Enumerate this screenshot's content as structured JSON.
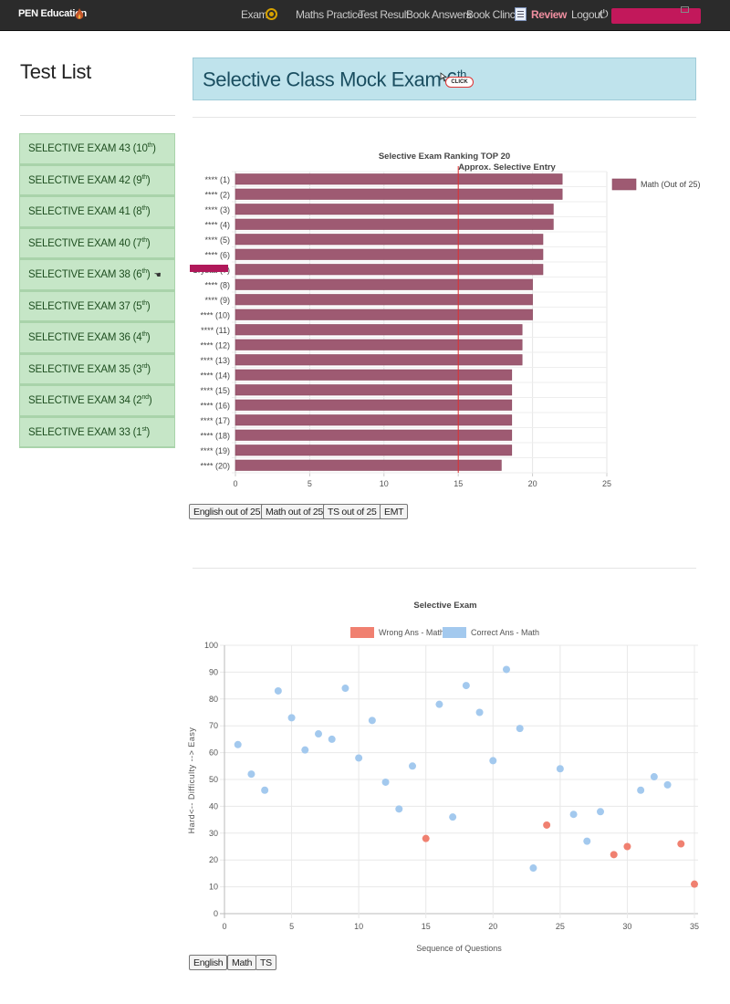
{
  "navbar": {
    "brand": "PEN Education",
    "links": {
      "exam": "Exam",
      "maths_practice": "Maths Practice",
      "test_result": "Test Result",
      "book_answers": "Book Answers",
      "book_clinic": "Book Clinc",
      "review": "Review",
      "logout": "Logout"
    },
    "colors": {
      "bar": "#2b2b2b",
      "review": "#f08fa0"
    }
  },
  "sidebar": {
    "title": "Test List",
    "items": [
      {
        "label": "SELECTIVE EXAM 43 (10",
        "sup": "th",
        "end": ")"
      },
      {
        "label": "SELECTIVE EXAM 42 (9",
        "sup": "th",
        "end": ")"
      },
      {
        "label": "SELECTIVE EXAM 41 (8",
        "sup": "th",
        "end": ")"
      },
      {
        "label": "SELECTIVE EXAM 40 (7",
        "sup": "th",
        "end": ")"
      },
      {
        "label": "SELECTIVE EXAM 38 (6",
        "sup": "th",
        "end": ")",
        "selected": true
      },
      {
        "label": "SELECTIVE EXAM 37 (5",
        "sup": "th",
        "end": ")"
      },
      {
        "label": "SELECTIVE EXAM 36 (4",
        "sup": "th",
        "end": ")"
      },
      {
        "label": "SELECTIVE EXAM 35 (3",
        "sup": "rd",
        "end": ")"
      },
      {
        "label": "SELECTIVE EXAM 34 (2",
        "sup": "nd",
        "end": ")"
      },
      {
        "label": "SELECTIVE EXAM 33 (1",
        "sup": "st",
        "end": ")"
      }
    ]
  },
  "main": {
    "exam_title": "Selective Class Mock Exam 6",
    "exam_title_sup": "th",
    "click_badge": "CLICK",
    "ranking_buttons": [
      "English out of 25",
      "Math out of 25",
      "TS out of 25",
      "EMT"
    ],
    "scatter_buttons": [
      "English",
      "Math",
      "TS"
    ]
  },
  "chart_data": [
    {
      "type": "bar",
      "orientation": "horizontal",
      "title": "Selective Exam Ranking TOP 20",
      "annotation": {
        "text": "Approx. Selective Entry",
        "x": 15,
        "color": "#e03030"
      },
      "categories": [
        "**** (1)",
        "**** (2)",
        "**** (3)",
        "**** (4)",
        "**** (5)",
        "**** (6)",
        "Crystal (7)",
        "**** (8)",
        "**** (9)",
        "**** (10)",
        "**** (11)",
        "**** (12)",
        "**** (13)",
        "**** (14)",
        "**** (15)",
        "**** (16)",
        "**** (17)",
        "**** (18)",
        "**** (19)",
        "**** (20)"
      ],
      "series": [
        {
          "name": "Math (Out of 25)",
          "color": "#9e5a72",
          "values": [
            22,
            22,
            21.4,
            21.4,
            20.7,
            20.7,
            20.7,
            20,
            20,
            20,
            19.3,
            19.3,
            19.3,
            18.6,
            18.6,
            18.6,
            18.6,
            18.6,
            18.6,
            17.9
          ]
        }
      ],
      "xlim": [
        0,
        25
      ],
      "xticks": [
        0,
        5,
        10,
        15,
        20,
        25
      ],
      "legend": "top-right",
      "grid": true
    },
    {
      "type": "scatter",
      "title": "Selective Exam",
      "xlabel": "Sequence of Questions",
      "ylabel": "Hard<-- Difficulty --> Easy",
      "xlim": [
        0,
        35
      ],
      "ylim": [
        0,
        100
      ],
      "xticks": [
        0,
        5,
        10,
        15,
        20,
        25,
        30,
        35
      ],
      "yticks": [
        0,
        10,
        20,
        30,
        40,
        50,
        60,
        70,
        80,
        90,
        100
      ],
      "legend": "top",
      "grid": true,
      "series": [
        {
          "name": "Wrong Ans - Math",
          "color": "#f08070",
          "points": [
            [
              15,
              28
            ],
            [
              24,
              33
            ],
            [
              29,
              22
            ],
            [
              30,
              25
            ],
            [
              34,
              26
            ],
            [
              35,
              11
            ]
          ]
        },
        {
          "name": "Correct Ans - Math",
          "color": "#a3c9ee",
          "points": [
            [
              1,
              63
            ],
            [
              2,
              52
            ],
            [
              3,
              46
            ],
            [
              4,
              83
            ],
            [
              5,
              73
            ],
            [
              6,
              61
            ],
            [
              7,
              67
            ],
            [
              8,
              65
            ],
            [
              9,
              84
            ],
            [
              10,
              58
            ],
            [
              11,
              72
            ],
            [
              12,
              49
            ],
            [
              13,
              39
            ],
            [
              14,
              55
            ],
            [
              16,
              78
            ],
            [
              17,
              36
            ],
            [
              18,
              85
            ],
            [
              19,
              75
            ],
            [
              20,
              57
            ],
            [
              21,
              91
            ],
            [
              22,
              69
            ],
            [
              23,
              17
            ],
            [
              25,
              54
            ],
            [
              26,
              37
            ],
            [
              27,
              27
            ],
            [
              28,
              38
            ],
            [
              31,
              46
            ],
            [
              32,
              51
            ],
            [
              33,
              48
            ]
          ]
        }
      ]
    }
  ]
}
